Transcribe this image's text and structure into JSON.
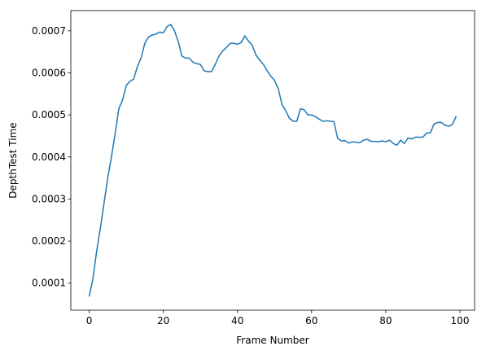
{
  "chart_data": {
    "type": "line",
    "xlabel": "Frame Number",
    "ylabel": "DepthTest Time",
    "x": [
      0,
      1,
      2,
      3,
      4,
      5,
      6,
      7,
      8,
      9,
      10,
      11,
      12,
      13,
      14,
      15,
      16,
      17,
      18,
      19,
      20,
      21,
      22,
      23,
      24,
      25,
      26,
      27,
      28,
      29,
      30,
      31,
      32,
      33,
      34,
      35,
      36,
      37,
      38,
      39,
      40,
      41,
      42,
      43,
      44,
      45,
      46,
      47,
      48,
      49,
      50,
      51,
      52,
      53,
      54,
      55,
      56,
      57,
      58,
      59,
      60,
      61,
      62,
      63,
      64,
      65,
      66,
      67,
      68,
      69,
      70,
      71,
      72,
      73,
      74,
      75,
      76,
      77,
      78,
      79,
      80,
      81,
      82,
      83,
      84,
      85,
      86,
      87,
      88,
      89,
      90,
      91,
      92,
      93,
      94,
      95,
      96,
      97,
      98,
      99
    ],
    "series": [
      {
        "name": "DepthTest Time",
        "color": "#1f77b4",
        "values": [
          6.8e-05,
          0.00011,
          0.000175,
          0.00023,
          0.00029,
          0.00035,
          0.0004,
          0.000455,
          0.000515,
          0.000535,
          0.00057,
          0.00058,
          0.000585,
          0.000615,
          0.000635,
          0.00067,
          0.000685,
          0.00069,
          0.000692,
          0.000697,
          0.000695,
          0.00071,
          0.000715,
          0.0007,
          0.000675,
          0.00064,
          0.000635,
          0.000635,
          0.000625,
          0.000622,
          0.00062,
          0.000605,
          0.000603,
          0.000603,
          0.00062,
          0.00064,
          0.000652,
          0.00066,
          0.00067,
          0.00067,
          0.000668,
          0.000672,
          0.000688,
          0.000675,
          0.000665,
          0.000642,
          0.00063,
          0.00062,
          0.000605,
          0.000592,
          0.000582,
          0.000562,
          0.000525,
          0.00051,
          0.000492,
          0.000485,
          0.000485,
          0.000515,
          0.000512,
          0.0005,
          0.0005,
          0.000496,
          0.00049,
          0.000485,
          0.000486,
          0.000485,
          0.000484,
          0.000445,
          0.000438,
          0.000439,
          0.000433,
          0.000436,
          0.000435,
          0.000434,
          0.00044,
          0.000442,
          0.000437,
          0.000437,
          0.000436,
          0.000438,
          0.000436,
          0.00044,
          0.000432,
          0.000428,
          0.00044,
          0.000432,
          0.000445,
          0.000443,
          0.000447,
          0.000447,
          0.000447,
          0.000457,
          0.000457,
          0.000478,
          0.000482,
          0.000482,
          0.000475,
          0.000473,
          0.000478,
          0.000497
        ]
      }
    ],
    "xlim": [
      -4.95,
      103.95
    ],
    "xticks": [
      0,
      20,
      40,
      60,
      80,
      100
    ],
    "ylim": [
      3.56e-05,
      0.000748
    ],
    "yticks": [
      0.0001,
      0.0002,
      0.0003,
      0.0004,
      0.0005,
      0.0006,
      0.0007
    ]
  }
}
